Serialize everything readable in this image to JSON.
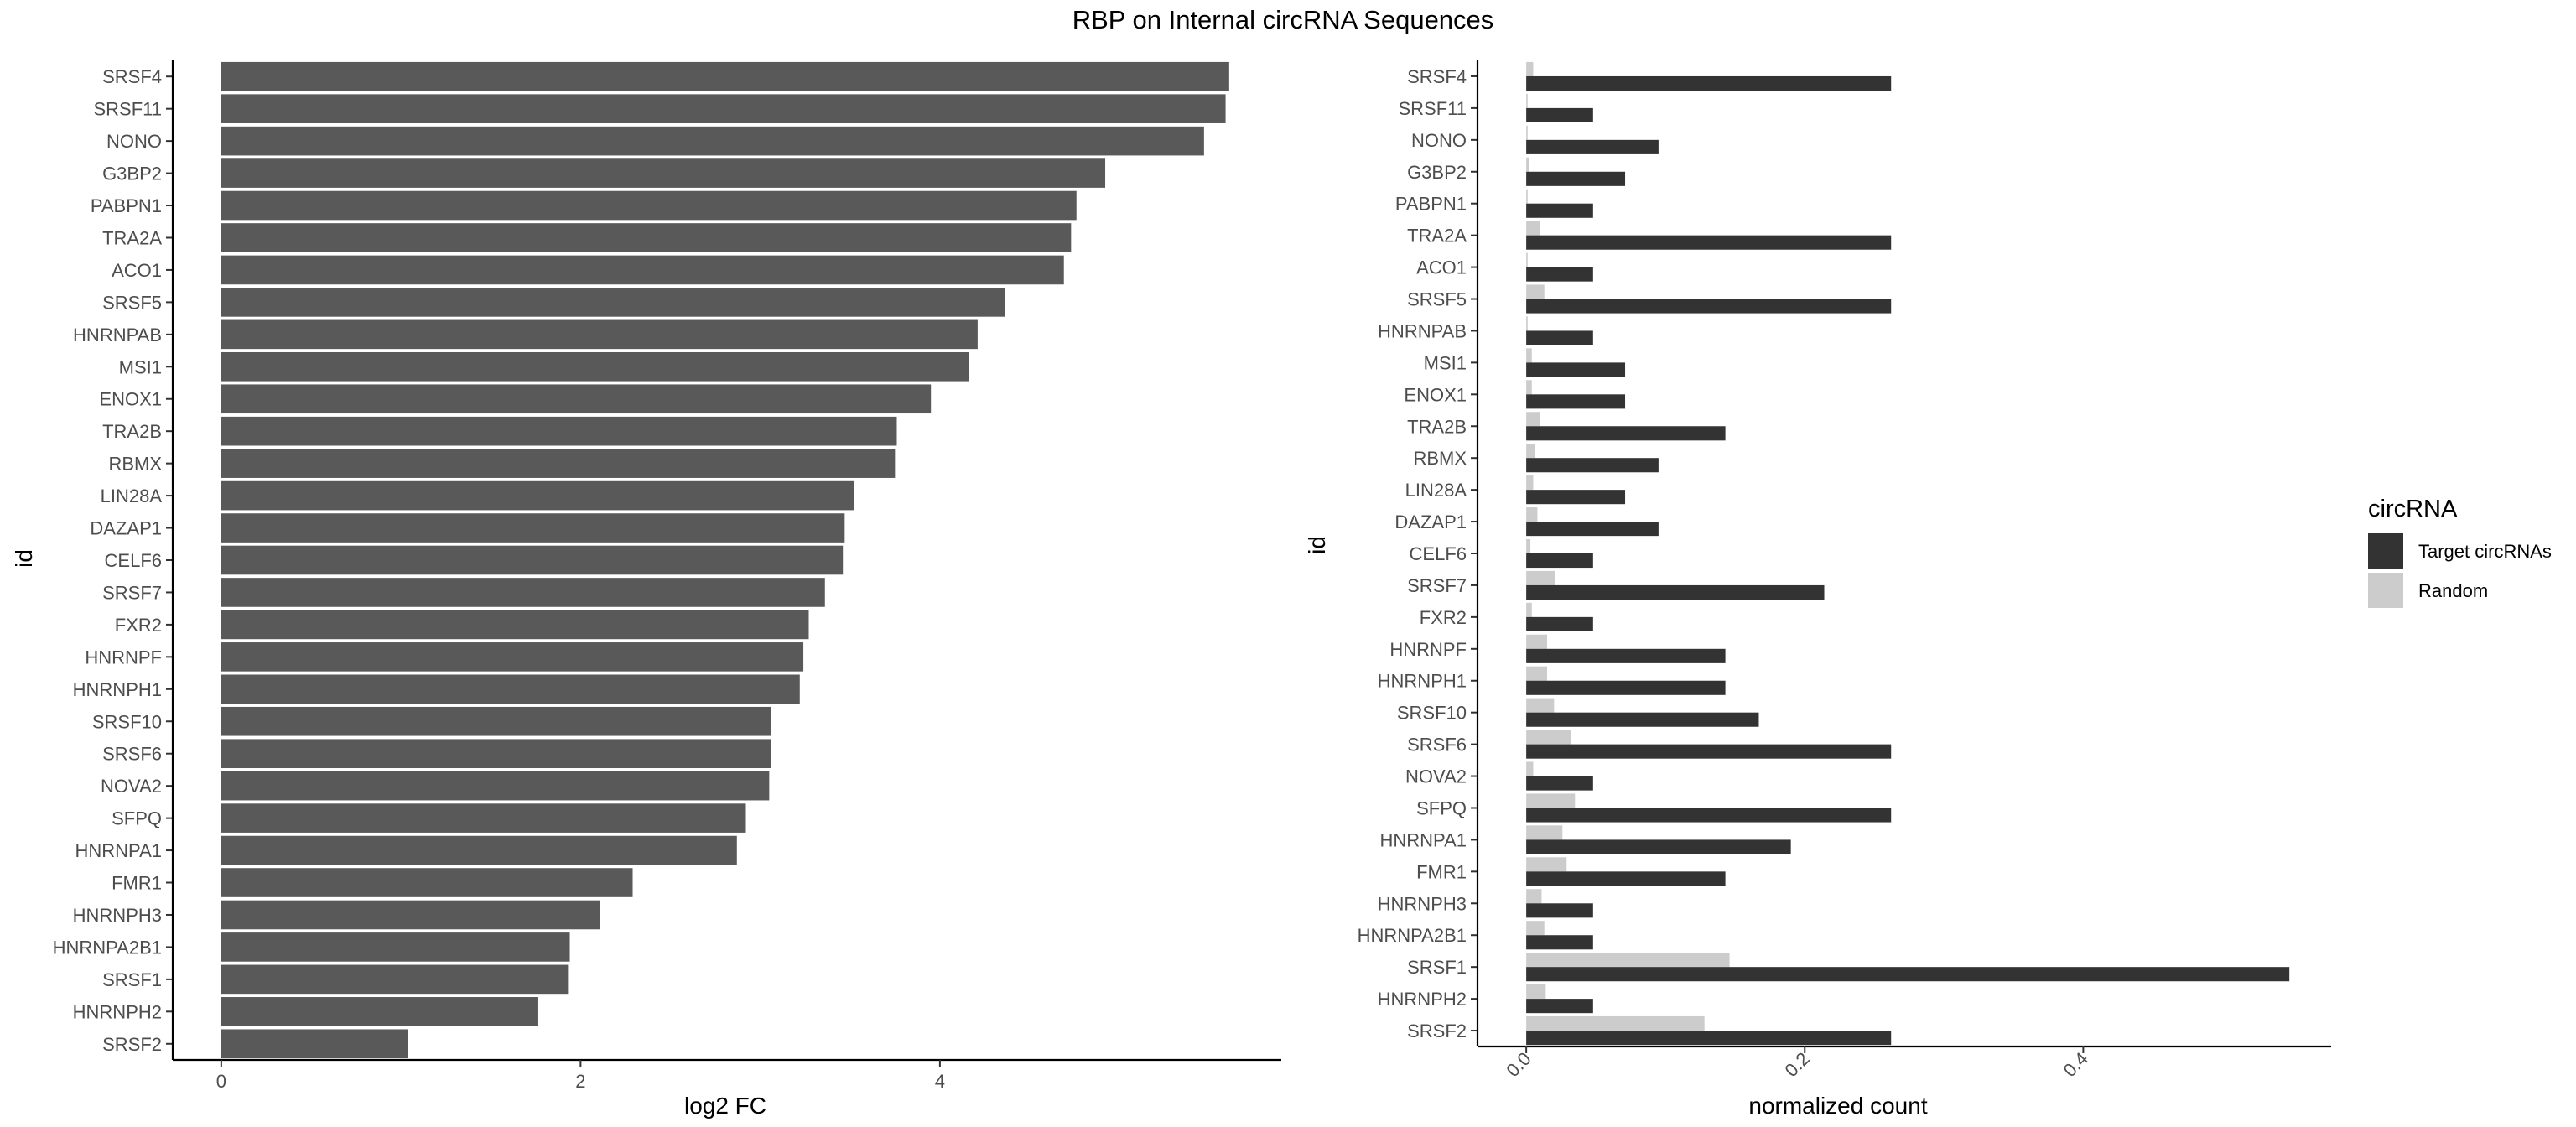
{
  "title": "RBP on Internal circRNA Sequences",
  "chart_data": [
    {
      "type": "bar",
      "orientation": "horizontal",
      "xlabel": "log2 FC",
      "ylabel": "id",
      "xlim": [
        -0.27,
        5.9
      ],
      "xticks": [
        0,
        2,
        4
      ],
      "categories": [
        "SRSF4",
        "SRSF11",
        "NONO",
        "G3BP2",
        "PABPN1",
        "TRA2A",
        "ACO1",
        "SRSF5",
        "HNRNPAB",
        "MSI1",
        "ENOX1",
        "TRA2B",
        "RBMX",
        "LIN28A",
        "DAZAP1",
        "CELF6",
        "SRSF7",
        "FXR2",
        "HNRNPF",
        "HNRNPH1",
        "SRSF10",
        "SRSF6",
        "NOVA2",
        "SFPQ",
        "HNRNPA1",
        "FMR1",
        "HNRNPH3",
        "HNRNPA2B1",
        "SRSF1",
        "HNRNPH2",
        "SRSF2"
      ],
      "values": [
        5.61,
        5.59,
        5.47,
        4.92,
        4.76,
        4.73,
        4.69,
        4.36,
        4.21,
        4.16,
        3.95,
        3.76,
        3.75,
        3.52,
        3.47,
        3.46,
        3.36,
        3.27,
        3.24,
        3.22,
        3.06,
        3.06,
        3.05,
        2.92,
        2.87,
        2.29,
        2.11,
        1.94,
        1.93,
        1.76,
        1.04
      ],
      "bar_color": "#595959",
      "grid": false
    },
    {
      "type": "bar",
      "orientation": "horizontal",
      "position": "dodge",
      "xlabel": "normalized count",
      "ylabel": "id",
      "xlim": [
        -0.035,
        0.578
      ],
      "xticks": [
        "0.0",
        "0.2",
        "0.4"
      ],
      "tick_label_rotation": 45,
      "categories": [
        "SRSF4",
        "SRSF11",
        "NONO",
        "G3BP2",
        "PABPN1",
        "TRA2A",
        "ACO1",
        "SRSF5",
        "HNRNPAB",
        "MSI1",
        "ENOX1",
        "TRA2B",
        "RBMX",
        "LIN28A",
        "DAZAP1",
        "CELF6",
        "SRSF7",
        "FXR2",
        "HNRNPF",
        "HNRNPH1",
        "SRSF10",
        "SRSF6",
        "NOVA2",
        "SFPQ",
        "HNRNPA1",
        "FMR1",
        "HNRNPH3",
        "HNRNPA2B1",
        "SRSF1",
        "HNRNPH2",
        "SRSF2"
      ],
      "series": [
        {
          "name": "Random",
          "color": "#cccccc",
          "values": [
            0.005,
            0.001,
            0.001,
            0.002,
            0.001,
            0.01,
            0.001,
            0.013,
            0.001,
            0.004,
            0.004,
            0.01,
            0.006,
            0.005,
            0.008,
            0.003,
            0.021,
            0.004,
            0.015,
            0.015,
            0.02,
            0.032,
            0.005,
            0.035,
            0.026,
            0.029,
            0.011,
            0.013,
            0.146,
            0.014,
            0.128
          ]
        },
        {
          "name": "Target circRNAs",
          "color": "#333333",
          "values": [
            0.262,
            0.048,
            0.095,
            0.071,
            0.048,
            0.262,
            0.048,
            0.262,
            0.048,
            0.071,
            0.071,
            0.143,
            0.095,
            0.071,
            0.095,
            0.048,
            0.214,
            0.048,
            0.143,
            0.143,
            0.167,
            0.262,
            0.048,
            0.262,
            0.19,
            0.143,
            0.048,
            0.048,
            0.548,
            0.048,
            0.262
          ]
        }
      ],
      "legend": {
        "title": "circRNA",
        "entries": [
          "Target circRNAs",
          "Random"
        ],
        "position": "right"
      },
      "grid": false
    }
  ]
}
